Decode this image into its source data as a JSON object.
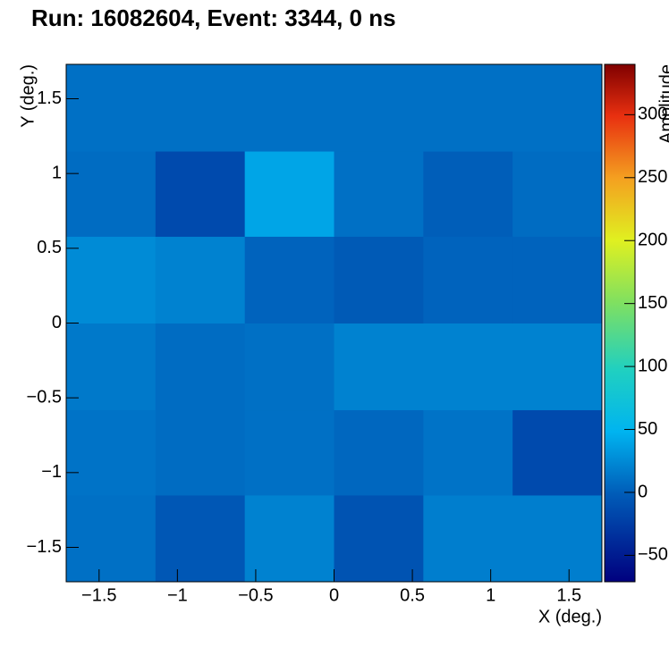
{
  "chart_data": {
    "type": "heatmap",
    "title": "Run: 16082604, Event: 3344, 0 ns",
    "xlabel": "X (deg.)",
    "ylabel": "Y (deg.)",
    "zlabel": "Amplitude",
    "x_bins": [
      -1.71,
      -1.14,
      -0.57,
      0,
      0.57,
      1.14,
      1.71
    ],
    "y_bins": [
      -1.73,
      -1.15,
      -0.58,
      0,
      0.58,
      1.15,
      1.73
    ],
    "z": [
      [
        10,
        -5,
        20,
        -8,
        18,
        18
      ],
      [
        12,
        8,
        10,
        5,
        12,
        -15
      ],
      [
        15,
        8,
        10,
        20,
        20,
        20
      ],
      [
        25,
        20,
        3,
        -3,
        3,
        3
      ],
      [
        8,
        -15,
        40,
        10,
        0,
        8
      ],
      [
        10,
        10,
        10,
        10,
        10,
        10
      ]
    ],
    "xlim": [
      -1.71,
      1.71
    ],
    "ylim": [
      -1.73,
      1.73
    ],
    "zlim": [
      -71,
      340
    ],
    "xticks": [
      {
        "value": -1.5,
        "label": "−1.5"
      },
      {
        "value": -1,
        "label": "−1"
      },
      {
        "value": -0.5,
        "label": "−0.5"
      },
      0,
      0.5,
      1,
      1.5
    ],
    "yticks": [
      {
        "value": -1.5,
        "label": "−1.5"
      },
      {
        "value": -1,
        "label": "−1"
      },
      {
        "value": -0.5,
        "label": "−0.5"
      },
      0,
      0.5,
      1,
      1.5
    ],
    "zticks": [
      {
        "value": -50,
        "label": "−50"
      },
      0,
      50,
      100,
      150,
      200,
      250,
      300
    ],
    "colorscale": [
      [
        0,
        "#00007f"
      ],
      [
        0.17,
        "#005cb8"
      ],
      [
        0.29,
        "#00b4f0"
      ],
      [
        0.41,
        "#20d0c0"
      ],
      [
        0.54,
        "#80e060"
      ],
      [
        0.66,
        "#e0f020"
      ],
      [
        0.78,
        "#f4a020"
      ],
      [
        0.9,
        "#e83010"
      ],
      [
        1,
        "#800000"
      ]
    ]
  }
}
